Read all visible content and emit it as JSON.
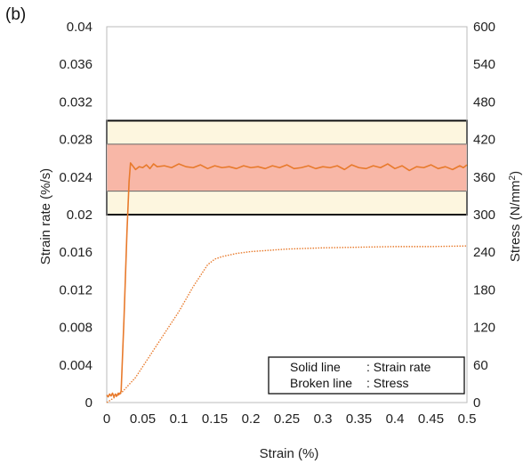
{
  "chart_data": {
    "type": "line",
    "panel_label": "(b)",
    "xlabel": "Strain (%)",
    "ylabel_left": "Strain rate (%/s)",
    "ylabel_right_main": "Stress (N/mm",
    "ylabel_right_sup": "2",
    "ylabel_right_end": ")",
    "xlim": [
      0,
      0.5
    ],
    "ylim_left": [
      0,
      0.04
    ],
    "ylim_right": [
      0,
      600
    ],
    "x_ticks": [
      "0",
      "0.05",
      "0.1",
      "0.15",
      "0.2",
      "0.25",
      "0.3",
      "0.35",
      "0.4",
      "0.45",
      "0.5"
    ],
    "y_left_ticks": [
      "0",
      "0.004",
      "0.008",
      "0.012",
      "0.016",
      "0.02",
      "0.024",
      "0.028",
      "0.032",
      "0.036",
      "0.04"
    ],
    "y_right_ticks": [
      "0",
      "60",
      "120",
      "180",
      "240",
      "300",
      "360",
      "420",
      "480",
      "540",
      "600"
    ],
    "grid": false,
    "bands": [
      {
        "name": "outer",
        "ymin": 0.02,
        "ymax": 0.03,
        "color": "#fdf6df"
      },
      {
        "name": "inner",
        "ymin": 0.0225,
        "ymax": 0.0275,
        "color": "#f8b7a7"
      }
    ],
    "series_color": "#e87a2c",
    "series": [
      {
        "axis": "left",
        "style": "solid",
        "points": [
          [
            0.0,
            0.0008
          ],
          [
            0.002,
            0.0006
          ],
          [
            0.004,
            0.0009
          ],
          [
            0.006,
            0.0007
          ],
          [
            0.008,
            0.001
          ],
          [
            0.01,
            0.0006
          ],
          [
            0.012,
            0.0009
          ],
          [
            0.014,
            0.0007
          ],
          [
            0.016,
            0.001
          ],
          [
            0.018,
            0.0009
          ],
          [
            0.02,
            0.0012
          ],
          [
            0.024,
            0.009
          ],
          [
            0.028,
            0.018
          ],
          [
            0.031,
            0.0235
          ],
          [
            0.033,
            0.0255
          ],
          [
            0.036,
            0.0252
          ],
          [
            0.04,
            0.0248
          ],
          [
            0.045,
            0.0251
          ],
          [
            0.05,
            0.025
          ],
          [
            0.055,
            0.0253
          ],
          [
            0.06,
            0.0249
          ],
          [
            0.065,
            0.0254
          ],
          [
            0.07,
            0.0251
          ],
          [
            0.08,
            0.0252
          ],
          [
            0.09,
            0.025
          ],
          [
            0.1,
            0.0254
          ],
          [
            0.11,
            0.0251
          ],
          [
            0.12,
            0.025
          ],
          [
            0.13,
            0.0253
          ],
          [
            0.14,
            0.0249
          ],
          [
            0.15,
            0.0252
          ],
          [
            0.16,
            0.025
          ],
          [
            0.17,
            0.0251
          ],
          [
            0.18,
            0.0249
          ],
          [
            0.19,
            0.0252
          ],
          [
            0.2,
            0.025
          ],
          [
            0.21,
            0.0251
          ],
          [
            0.22,
            0.0249
          ],
          [
            0.23,
            0.0252
          ],
          [
            0.24,
            0.025
          ],
          [
            0.25,
            0.0253
          ],
          [
            0.26,
            0.0249
          ],
          [
            0.27,
            0.025
          ],
          [
            0.28,
            0.0252
          ],
          [
            0.29,
            0.0249
          ],
          [
            0.3,
            0.0251
          ],
          [
            0.31,
            0.025
          ],
          [
            0.32,
            0.0252
          ],
          [
            0.33,
            0.0248
          ],
          [
            0.34,
            0.0253
          ],
          [
            0.35,
            0.025
          ],
          [
            0.36,
            0.0249
          ],
          [
            0.37,
            0.0252
          ],
          [
            0.38,
            0.025
          ],
          [
            0.39,
            0.0254
          ],
          [
            0.4,
            0.0249
          ],
          [
            0.41,
            0.0252
          ],
          [
            0.42,
            0.0247
          ],
          [
            0.43,
            0.0251
          ],
          [
            0.44,
            0.025
          ],
          [
            0.45,
            0.0253
          ],
          [
            0.46,
            0.0249
          ],
          [
            0.47,
            0.0251
          ],
          [
            0.48,
            0.0248
          ],
          [
            0.49,
            0.0252
          ],
          [
            0.495,
            0.025
          ],
          [
            0.5,
            0.0253
          ]
        ]
      },
      {
        "axis": "right",
        "style": "dashed",
        "points": [
          [
            0.0,
            0
          ],
          [
            0.02,
            15
          ],
          [
            0.04,
            40
          ],
          [
            0.06,
            75
          ],
          [
            0.08,
            110
          ],
          [
            0.1,
            145
          ],
          [
            0.12,
            185
          ],
          [
            0.14,
            220
          ],
          [
            0.15,
            229
          ],
          [
            0.16,
            233
          ],
          [
            0.18,
            238
          ],
          [
            0.2,
            241
          ],
          [
            0.25,
            245
          ],
          [
            0.3,
            247
          ],
          [
            0.35,
            248
          ],
          [
            0.4,
            249
          ],
          [
            0.45,
            249
          ],
          [
            0.5,
            250
          ]
        ]
      }
    ],
    "legend": {
      "position": "bottom-right",
      "rows": [
        {
          "label": "Solid line",
          "value": ": Strain rate"
        },
        {
          "label": "Broken line",
          "value": ": Stress"
        }
      ]
    }
  }
}
